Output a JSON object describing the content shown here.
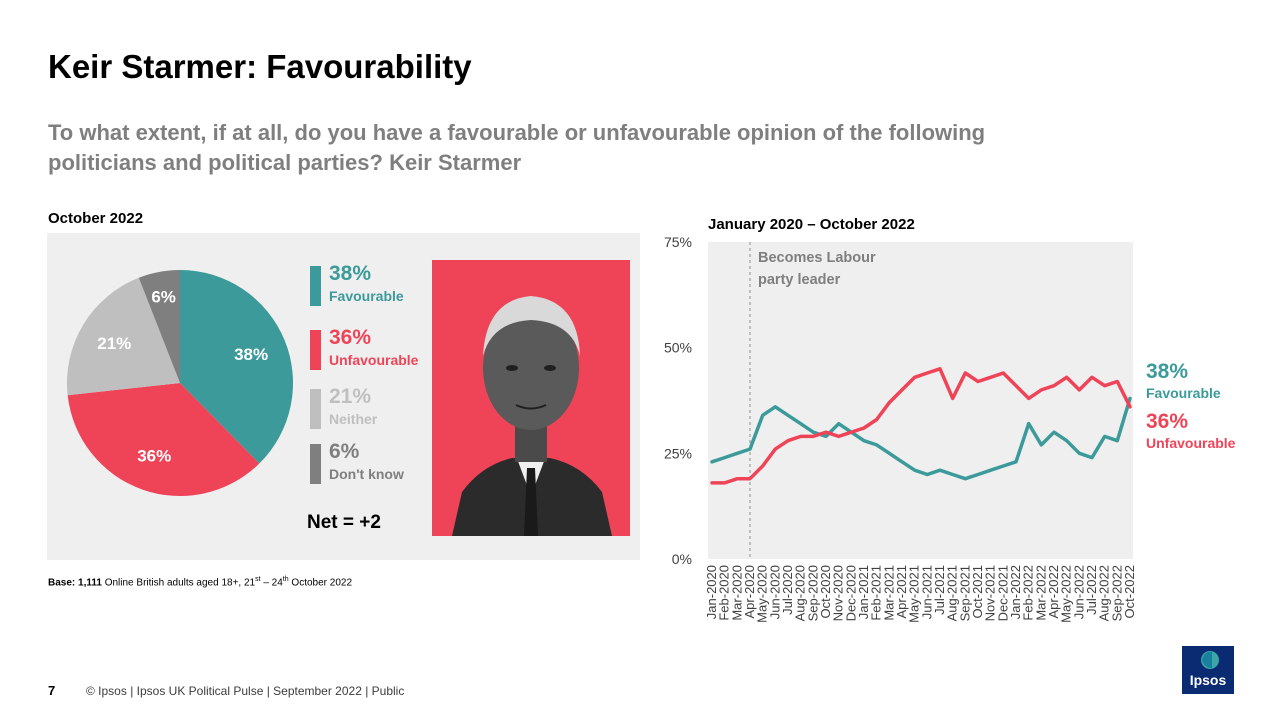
{
  "title": "Keir Starmer: Favourability",
  "question": "To what extent, if at all, do you have a favourable or unfavourable opinion of the following politicians and political parties? Keir Starmer",
  "left_period": "October 2022",
  "legend": [
    {
      "pct": "38%",
      "label": "Favourable",
      "color": "#3d9a9a"
    },
    {
      "pct": "36%",
      "label": "Unfavourable",
      "color": "#ef4458"
    },
    {
      "pct": "21%",
      "label": "Neither",
      "color": "#bfbfbf"
    },
    {
      "pct": "6%",
      "label": "Don't know",
      "color": "#7f7f7f"
    }
  ],
  "net": "Net = +2",
  "base": {
    "bold": "Base: 1,111",
    "rest": " Online British adults aged 18+, 21",
    "sup1": "st",
    "mid": " – 24",
    "sup2": "th",
    "end": " October 2022"
  },
  "right_period": "January 2020 – October 2022",
  "annotation": [
    "Becomes Labour",
    "party leader"
  ],
  "end_labels": {
    "fav": {
      "pct": "38%",
      "label": "Favourable"
    },
    "unfav": {
      "pct": "36%",
      "label": "Unfavourable"
    }
  },
  "footer": {
    "page": "7",
    "text": "© Ipsos  |  Ipsos UK Political Pulse | September 2022 | Public"
  },
  "logo_text": "Ipsos",
  "chart_data": [
    {
      "type": "pie",
      "categories": [
        "Favourable",
        "Unfavourable",
        "Neither",
        "Don't know"
      ],
      "values": [
        38,
        36,
        21,
        6
      ],
      "labels": [
        "38%",
        "36%",
        "21%",
        "6%"
      ],
      "colors": [
        "#3d9a9a",
        "#ef4458",
        "#bfbfbf",
        "#7f7f7f"
      ]
    },
    {
      "type": "line",
      "x": [
        "Jan-2020",
        "Feb-2020",
        "Mar-2020",
        "Apr-2020",
        "May-2020",
        "Jun-2020",
        "Jul-2020",
        "Aug-2020",
        "Sep-2020",
        "Oct-2020",
        "Nov-2020",
        "Dec-2020",
        "Jan-2021",
        "Feb-2021",
        "Mar-2021",
        "Apr-2021",
        "May-2021",
        "Jun-2021",
        "Jul-2021",
        "Aug-2021",
        "Sep-2021",
        "Oct-2021",
        "Nov-2021",
        "Dec-2021",
        "Jan-2022",
        "Feb-2022",
        "Mar-2022",
        "Apr-2022",
        "May-2022",
        "Jun-2022",
        "Jul-2022",
        "Aug-2022",
        "Sep-2022",
        "Oct-2022"
      ],
      "series": [
        {
          "name": "Favourable",
          "color": "#3d9a9a",
          "values": [
            23,
            24,
            25,
            26,
            34,
            36,
            34,
            32,
            30,
            29,
            32,
            30,
            28,
            27,
            25,
            23,
            21,
            20,
            21,
            20,
            19,
            20,
            21,
            22,
            23,
            32,
            27,
            30,
            28,
            25,
            24,
            29,
            28,
            38
          ]
        },
        {
          "name": "Unfavourable",
          "color": "#ef4458",
          "values": [
            18,
            18,
            19,
            19,
            22,
            26,
            28,
            29,
            29,
            30,
            29,
            30,
            31,
            33,
            37,
            40,
            43,
            44,
            45,
            38,
            44,
            42,
            43,
            44,
            41,
            38,
            40,
            41,
            43,
            40,
            43,
            41,
            42,
            36
          ]
        }
      ],
      "yticks": [
        "0%",
        "25%",
        "50%",
        "75%"
      ],
      "ylim": [
        0,
        75
      ],
      "grid": false,
      "annotation_x": "Apr-2020"
    }
  ]
}
